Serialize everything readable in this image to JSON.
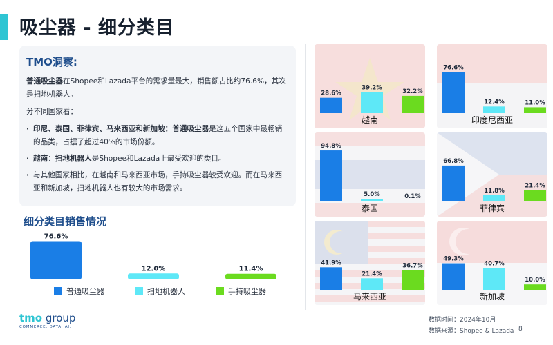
{
  "page": {
    "title": "吸尘器 - 细分类目",
    "page_number": "8"
  },
  "insight": {
    "title": "TMO洞察:",
    "p1_b": "普通吸尘器",
    "p1_a": "在Shopee和Lazada平台的需求量最大，销售额占比约76.6%，其次是扫地机器人。",
    "p2": "分不同国家看：",
    "b1_b": "印尼、泰国、菲律宾、马来西亚和新加坡：普通吸尘器",
    "b1_a": "是这五个国家中最畅销的品类，占据了超过40%的市场份额。",
    "b2_b1": "越南",
    "b2_t1": "：",
    "b2_b2": "扫地机器人",
    "b2_a": "是Shopee和Lazada上最受欢迎的类目。",
    "b3": "与其他国家相比，在越南和马来西亚市场，手持吸尘器较受欢迎。而在马来西亚和新加坡，扫地机器人也有较大的市场需求。"
  },
  "section_title": "细分类目销售情况",
  "colors": {
    "series": [
      "#1a7ee6",
      "#5ee8f7",
      "#6bdb1f"
    ],
    "accent": "#2ec5d3",
    "heading": "#1f4e8c"
  },
  "chart_data": [
    {
      "type": "bar",
      "title": "",
      "categories": [
        "普通吸尘器",
        "扫地机器人",
        "手持吸尘器"
      ],
      "values": [
        76.6,
        12.0,
        11.4
      ],
      "value_labels": [
        "76.6%",
        "12.0%",
        "11.4%"
      ],
      "ylim": [
        0,
        80
      ],
      "legend": "bottom",
      "grid": false
    },
    {
      "type": "bar",
      "title": "越南",
      "categories": [
        "普通吸尘器",
        "扫地机器人",
        "手持吸尘器"
      ],
      "values": [
        28.6,
        39.2,
        32.2
      ],
      "value_labels": [
        "28.6%",
        "39.2%",
        "32.2%"
      ],
      "ylim": [
        0,
        100
      ]
    },
    {
      "type": "bar",
      "title": "印度尼西亚",
      "categories": [
        "普通吸尘器",
        "扫地机器人",
        "手持吸尘器"
      ],
      "values": [
        76.6,
        12.4,
        11.0
      ],
      "value_labels": [
        "76.6%",
        "12.4%",
        "11.0%"
      ],
      "ylim": [
        0,
        100
      ]
    },
    {
      "type": "bar",
      "title": "泰国",
      "categories": [
        "普通吸尘器",
        "扫地机器人",
        "手持吸尘器"
      ],
      "values": [
        94.8,
        5.0,
        0.1
      ],
      "value_labels": [
        "94.8%",
        "5.0%",
        "0.1%"
      ],
      "ylim": [
        0,
        100
      ]
    },
    {
      "type": "bar",
      "title": "菲律宾",
      "categories": [
        "普通吸尘器",
        "扫地机器人",
        "手持吸尘器"
      ],
      "values": [
        66.8,
        11.8,
        21.4
      ],
      "value_labels": [
        "66.8%",
        "11.8%",
        "21.4%"
      ],
      "ylim": [
        0,
        100
      ]
    },
    {
      "type": "bar",
      "title": "马来西亚",
      "categories": [
        "普通吸尘器",
        "扫地机器人",
        "手持吸尘器"
      ],
      "values": [
        41.9,
        21.4,
        36.7
      ],
      "value_labels": [
        "41.9%",
        "21.4%",
        "36.7%"
      ],
      "ylim": [
        0,
        100
      ]
    },
    {
      "type": "bar",
      "title": "新加坡",
      "categories": [
        "普通吸尘器",
        "扫地机器人",
        "手持吸尘器"
      ],
      "values": [
        49.3,
        40.7,
        10.0
      ],
      "value_labels": [
        "49.3%",
        "40.7%",
        "10.0%"
      ],
      "ylim": [
        0,
        100
      ]
    }
  ],
  "footer": {
    "logo_main": "tmo",
    "logo_rest": " group",
    "logo_sub": "COMMERCE. DATA. AI.",
    "date": "数据时间：2024年10月",
    "source": "数据来源：Shopee & Lazada"
  }
}
